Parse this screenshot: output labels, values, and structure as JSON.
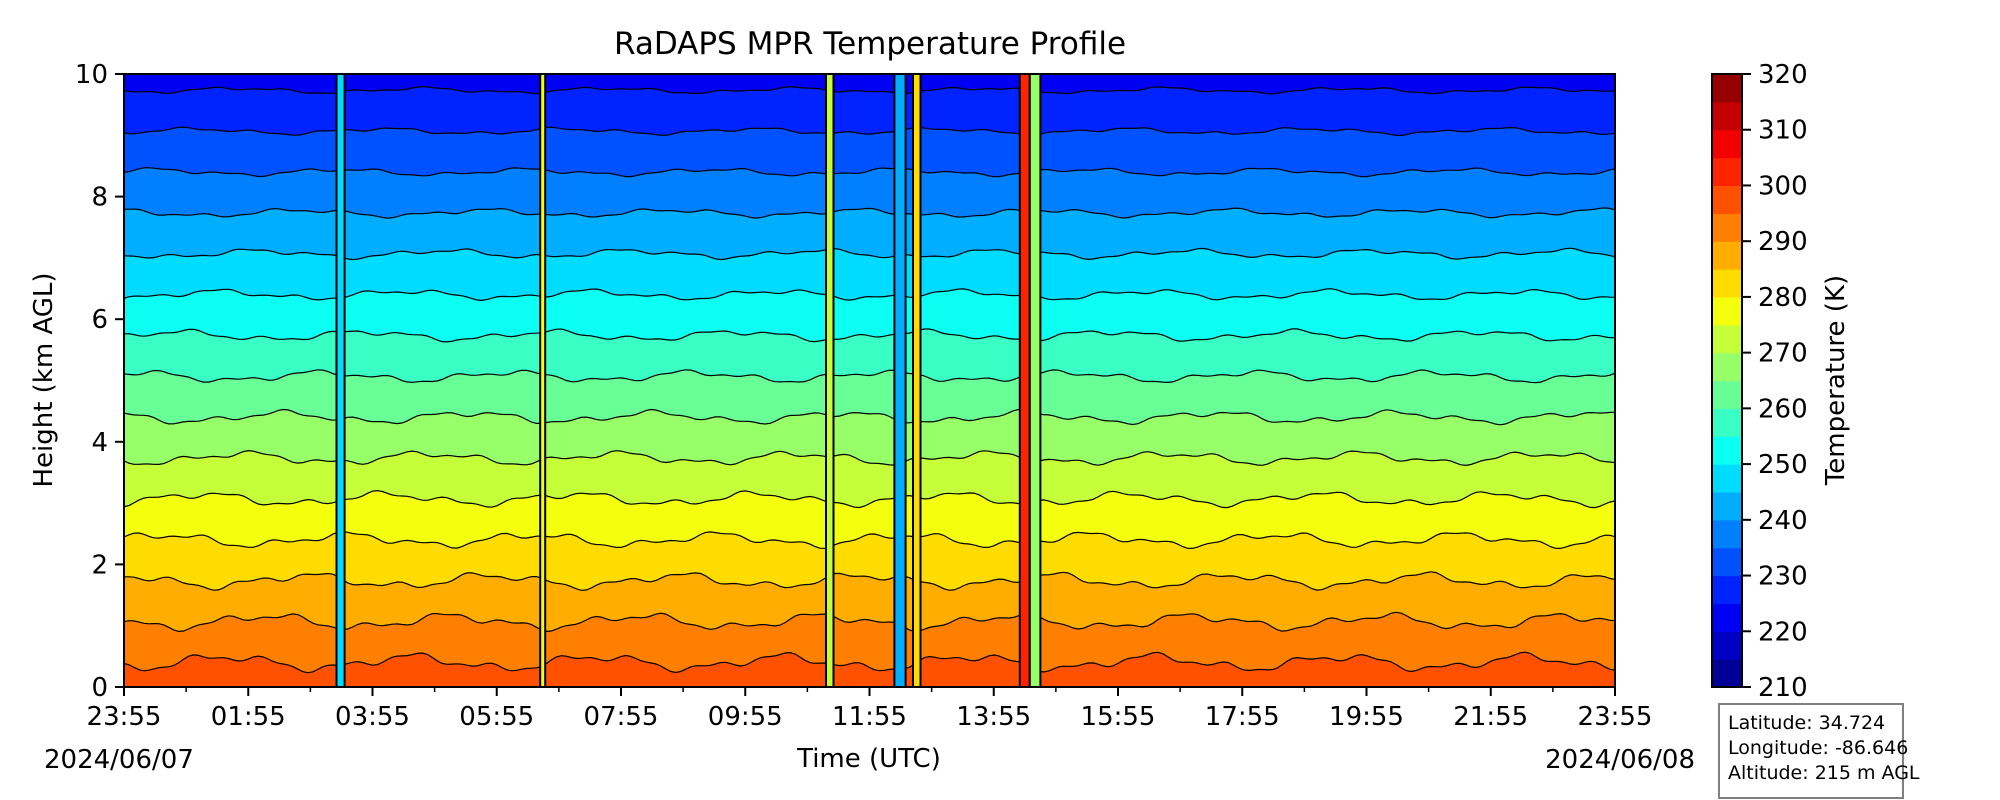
{
  "chart_data": {
    "type": "heatmap",
    "title": "RaDAPS MPR Temperature Profile",
    "xlabel": "Time (UTC)",
    "ylabel": "Height (km AGL)",
    "x_ticks": [
      "23:55",
      "01:55",
      "03:55",
      "05:55",
      "07:55",
      "09:55",
      "11:55",
      "13:55",
      "15:55",
      "17:55",
      "19:55",
      "21:55",
      "23:55"
    ],
    "x_date_start": "2024/06/07",
    "x_date_end": "2024/06/08",
    "x_range_hours": [
      0,
      24
    ],
    "y_ticks": [
      0,
      2,
      4,
      6,
      8,
      10
    ],
    "ylim": [
      0,
      10
    ],
    "colorbar": {
      "label": "Temperature (K)",
      "ticks": [
        210,
        220,
        230,
        240,
        250,
        260,
        270,
        280,
        290,
        300,
        310,
        320
      ],
      "range": [
        210,
        320
      ],
      "level_step": 5,
      "colormap": "jet"
    },
    "profile": {
      "surface_temp_K": 298,
      "lapse_rate_K_per_km": 7.5
    },
    "contour_interval_K": 5,
    "anomaly_columns": [
      {
        "start_hour": 3.42,
        "end_hour": 3.55,
        "temp_K": 245
      },
      {
        "start_hour": 6.7,
        "end_hour": 6.78,
        "temp_K": 278
      },
      {
        "start_hour": 11.3,
        "end_hour": 11.42,
        "temp_K": 272
      },
      {
        "start_hour": 12.4,
        "end_hour": 12.58,
        "temp_K": 240
      },
      {
        "start_hour": 12.7,
        "end_hour": 12.82,
        "temp_K": 282
      },
      {
        "start_hour": 14.42,
        "end_hour": 14.58,
        "temp_K": 300
      },
      {
        "start_hour": 14.58,
        "end_hour": 14.75,
        "temp_K": 268
      }
    ]
  },
  "station": {
    "latitude": "Latitude: 34.724",
    "longitude": "Longitude: -86.646",
    "altitude": "Altitude: 215 m AGL"
  }
}
